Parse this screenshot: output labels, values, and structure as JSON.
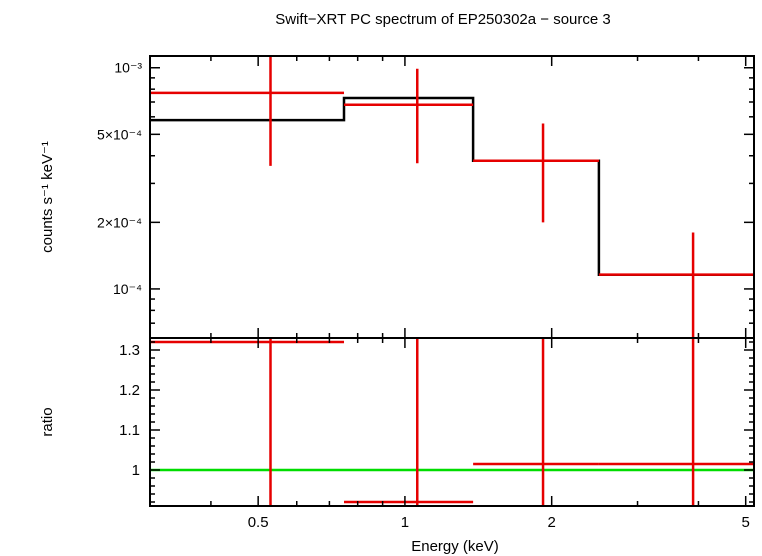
{
  "chart_data": {
    "type": "line",
    "title": "Swift−XRT PC spectrum of EP250302a − source 3",
    "xlabel": "Energy (keV)",
    "x_scale": "log",
    "xlim": [
      0.3,
      5.2
    ],
    "x_ticks": [
      {
        "value": 0.5,
        "label": "0.5"
      },
      {
        "value": 1,
        "label": "1"
      },
      {
        "value": 2,
        "label": "2"
      },
      {
        "value": 5,
        "label": "5"
      }
    ],
    "top_panel": {
      "ylabel": "counts s⁻¹ keV⁻¹",
      "y_scale": "log",
      "ylim": [
        6e-05,
        0.00113
      ],
      "y_ticks": [
        {
          "value": 0.001,
          "label": "10⁻³"
        },
        {
          "value": 0.0005,
          "label": "5×10⁻⁴"
        },
        {
          "value": 0.0002,
          "label": "2×10⁻⁴"
        },
        {
          "value": 0.0001,
          "label": "10⁻⁴"
        }
      ],
      "data": {
        "color": "#e60000",
        "points": [
          {
            "x": 0.53,
            "xlo": 0.3,
            "xhi": 0.75,
            "y": 0.00077,
            "ylo": 0.00036,
            "yhi": 0.00118
          },
          {
            "x": 1.06,
            "xlo": 0.75,
            "xhi": 1.38,
            "y": 0.00068,
            "ylo": 0.00037,
            "yhi": 0.00099
          },
          {
            "x": 1.92,
            "xlo": 1.38,
            "xhi": 2.5,
            "y": 0.00038,
            "ylo": 0.0002,
            "yhi": 0.00056
          },
          {
            "x": 3.9,
            "xlo": 2.5,
            "xhi": 5.2,
            "y": 0.000116,
            "ylo": 5e-05,
            "yhi": 0.00018
          }
        ]
      },
      "model": {
        "color": "#000000",
        "bins": [
          {
            "xlo": 0.3,
            "xhi": 0.75,
            "y": 0.00058
          },
          {
            "xlo": 0.75,
            "xhi": 1.38,
            "y": 0.00073
          },
          {
            "xlo": 1.38,
            "xhi": 2.5,
            "y": 0.00038
          },
          {
            "xlo": 2.5,
            "xhi": 5.2,
            "y": 0.000116
          }
        ]
      }
    },
    "bottom_panel": {
      "ylabel": "ratio",
      "y_scale": "linear",
      "ylim": [
        0.91,
        1.33
      ],
      "y_ticks": [
        {
          "value": 1,
          "label": "1"
        },
        {
          "value": 1.1,
          "label": "1.1"
        },
        {
          "value": 1.2,
          "label": "1.2"
        },
        {
          "value": 1.3,
          "label": "1.3"
        }
      ],
      "reference": {
        "value": 1,
        "color": "#00dd00"
      },
      "points": [
        {
          "x": 0.53,
          "xlo": 0.3,
          "xhi": 0.75,
          "y": 1.32,
          "ylo": 0.9,
          "yhi": 1.33
        },
        {
          "x": 1.06,
          "xlo": 0.75,
          "xhi": 1.38,
          "y": 0.92,
          "ylo": 0.9,
          "yhi": 1.33
        },
        {
          "x": 1.92,
          "xlo": 1.38,
          "xhi": 2.5,
          "y": 1.015,
          "ylo": 0.9,
          "yhi": 1.33
        },
        {
          "x": 3.9,
          "xlo": 2.5,
          "xhi": 5.2,
          "y": 1.015,
          "ylo": 0.9,
          "yhi": 1.33
        }
      ]
    }
  }
}
